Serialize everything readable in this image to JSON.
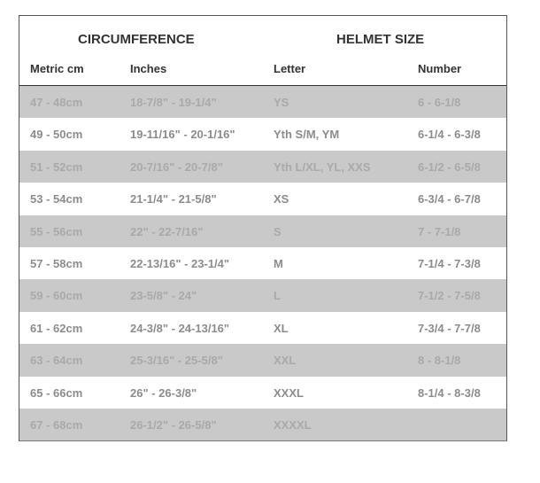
{
  "groups": {
    "circumference": "CIRCUMFERENCE",
    "helmet_size": "HELMET SIZE"
  },
  "columns": [
    "Metric cm",
    "Inches",
    "Letter",
    "Number"
  ],
  "rows": [
    [
      "47 - 48cm",
      "18-7/8\" - 19-1/4\"",
      "YS",
      "6 - 6-1/8"
    ],
    [
      "49 - 50cm",
      "19-11/16\" - 20-1/16\"",
      "Yth S/M, YM",
      "6-1/4 - 6-3/8"
    ],
    [
      "51 - 52cm",
      "20-7/16\" - 20-7/8\"",
      "Yth L/XL, YL, XXS",
      "6-1/2 - 6-5/8"
    ],
    [
      "53 - 54cm",
      "21-1/4\" - 21-5/8\"",
      "XS",
      "6-3/4 - 6-7/8"
    ],
    [
      "55 - 56cm",
      "22\" - 22-7/16\"",
      "S",
      "7 - 7-1/8"
    ],
    [
      "57 - 58cm",
      "22-13/16\" - 23-1/4\"",
      "M",
      "7-1/4 - 7-3/8"
    ],
    [
      "59 - 60cm",
      "23-5/8\" - 24\"",
      "L",
      "7-1/2 - 7-5/8"
    ],
    [
      "61 - 62cm",
      "24-3/8\" - 24-13/16\"",
      "XL",
      "7-3/4 - 7-7/8"
    ],
    [
      "63 - 64cm",
      "25-3/16\" - 25-5/8\"",
      "XXL",
      "8 - 8-1/8"
    ],
    [
      "65 - 66cm",
      "26\" - 26-3/8\"",
      "XXXL",
      "8-1/4 - 8-3/8"
    ],
    [
      "67 - 68cm",
      "26-1/2\" - 26-5/8\"",
      "XXXXL",
      ""
    ]
  ],
  "colors": {
    "stripe": "#c9c9c9",
    "header_text": "#333333"
  }
}
